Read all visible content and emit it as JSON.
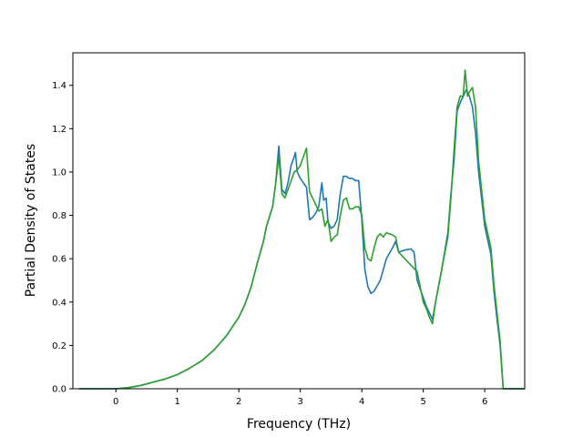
{
  "chart_data": {
    "type": "line",
    "title": "",
    "xlabel": "Frequency (THz)",
    "ylabel": "Partial Density of States",
    "xlim": [
      -0.7,
      6.65
    ],
    "ylim": [
      0.0,
      1.55
    ],
    "xticks": [
      "0",
      "1",
      "2",
      "3",
      "4",
      "5",
      "6"
    ],
    "yticks": [
      "0.0",
      "0.2",
      "0.4",
      "0.6",
      "0.8",
      "1.0",
      "1.2",
      "1.4"
    ],
    "grid": false,
    "legend": "none",
    "series": [
      {
        "color": "#1f77b4",
        "points": [
          [
            -0.6,
            0.0
          ],
          [
            0.0,
            0.0
          ],
          [
            0.2,
            0.005
          ],
          [
            0.4,
            0.015
          ],
          [
            0.6,
            0.03
          ],
          [
            0.8,
            0.045
          ],
          [
            1.0,
            0.065
          ],
          [
            1.2,
            0.095
          ],
          [
            1.4,
            0.13
          ],
          [
            1.6,
            0.18
          ],
          [
            1.8,
            0.245
          ],
          [
            2.0,
            0.33
          ],
          [
            2.1,
            0.39
          ],
          [
            2.2,
            0.47
          ],
          [
            2.3,
            0.58
          ],
          [
            2.4,
            0.68
          ],
          [
            2.45,
            0.75
          ],
          [
            2.55,
            0.84
          ],
          [
            2.6,
            0.95
          ],
          [
            2.65,
            1.12
          ],
          [
            2.7,
            0.92
          ],
          [
            2.75,
            0.9
          ],
          [
            2.8,
            0.95
          ],
          [
            2.85,
            1.03
          ],
          [
            2.9,
            1.07
          ],
          [
            2.92,
            1.09
          ],
          [
            2.95,
            1.0
          ],
          [
            3.0,
            0.97
          ],
          [
            3.1,
            0.93
          ],
          [
            3.15,
            0.78
          ],
          [
            3.2,
            0.79
          ],
          [
            3.25,
            0.81
          ],
          [
            3.3,
            0.84
          ],
          [
            3.35,
            0.95
          ],
          [
            3.38,
            0.87
          ],
          [
            3.42,
            0.88
          ],
          [
            3.45,
            0.77
          ],
          [
            3.5,
            0.74
          ],
          [
            3.55,
            0.75
          ],
          [
            3.6,
            0.78
          ],
          [
            3.65,
            0.9
          ],
          [
            3.7,
            0.98
          ],
          [
            3.75,
            0.98
          ],
          [
            3.8,
            0.97
          ],
          [
            3.85,
            0.97
          ],
          [
            3.9,
            0.96
          ],
          [
            3.95,
            0.96
          ],
          [
            4.0,
            0.78
          ],
          [
            4.05,
            0.55
          ],
          [
            4.1,
            0.47
          ],
          [
            4.15,
            0.44
          ],
          [
            4.2,
            0.45
          ],
          [
            4.3,
            0.5
          ],
          [
            4.4,
            0.6
          ],
          [
            4.5,
            0.65
          ],
          [
            4.55,
            0.68
          ],
          [
            4.6,
            0.63
          ],
          [
            4.7,
            0.64
          ],
          [
            4.8,
            0.645
          ],
          [
            4.85,
            0.63
          ],
          [
            4.9,
            0.5
          ],
          [
            5.0,
            0.42
          ],
          [
            5.05,
            0.38
          ],
          [
            5.1,
            0.35
          ],
          [
            5.15,
            0.32
          ],
          [
            5.2,
            0.4
          ],
          [
            5.3,
            0.55
          ],
          [
            5.4,
            0.72
          ],
          [
            5.45,
            0.9
          ],
          [
            5.5,
            1.05
          ],
          [
            5.55,
            1.28
          ],
          [
            5.6,
            1.32
          ],
          [
            5.65,
            1.35
          ],
          [
            5.7,
            1.38
          ],
          [
            5.75,
            1.35
          ],
          [
            5.8,
            1.3
          ],
          [
            5.85,
            1.18
          ],
          [
            5.9,
            1.0
          ],
          [
            6.0,
            0.75
          ],
          [
            6.1,
            0.62
          ],
          [
            6.15,
            0.45
          ],
          [
            6.2,
            0.32
          ],
          [
            6.25,
            0.2
          ],
          [
            6.3,
            0.0
          ],
          [
            6.35,
            0.0
          ],
          [
            7.0,
            0.0
          ]
        ]
      },
      {
        "color": "#2ca02c",
        "points": [
          [
            -0.6,
            0.0
          ],
          [
            0.0,
            0.0
          ],
          [
            0.2,
            0.005
          ],
          [
            0.4,
            0.015
          ],
          [
            0.6,
            0.03
          ],
          [
            0.8,
            0.045
          ],
          [
            1.0,
            0.065
          ],
          [
            1.2,
            0.095
          ],
          [
            1.4,
            0.13
          ],
          [
            1.6,
            0.18
          ],
          [
            1.8,
            0.245
          ],
          [
            2.0,
            0.33
          ],
          [
            2.1,
            0.39
          ],
          [
            2.2,
            0.47
          ],
          [
            2.3,
            0.58
          ],
          [
            2.4,
            0.68
          ],
          [
            2.45,
            0.75
          ],
          [
            2.55,
            0.84
          ],
          [
            2.6,
            0.95
          ],
          [
            2.65,
            1.07
          ],
          [
            2.7,
            0.9
          ],
          [
            2.75,
            0.88
          ],
          [
            2.8,
            0.92
          ],
          [
            2.85,
            0.96
          ],
          [
            2.9,
            1.0
          ],
          [
            2.95,
            1.01
          ],
          [
            3.0,
            1.03
          ],
          [
            3.05,
            1.07
          ],
          [
            3.1,
            1.11
          ],
          [
            3.15,
            0.91
          ],
          [
            3.2,
            0.88
          ],
          [
            3.25,
            0.85
          ],
          [
            3.3,
            0.82
          ],
          [
            3.35,
            0.83
          ],
          [
            3.4,
            0.75
          ],
          [
            3.45,
            0.78
          ],
          [
            3.5,
            0.68
          ],
          [
            3.55,
            0.7
          ],
          [
            3.6,
            0.71
          ],
          [
            3.65,
            0.8
          ],
          [
            3.7,
            0.87
          ],
          [
            3.75,
            0.88
          ],
          [
            3.8,
            0.83
          ],
          [
            3.85,
            0.83
          ],
          [
            3.9,
            0.84
          ],
          [
            3.95,
            0.84
          ],
          [
            4.0,
            0.8
          ],
          [
            4.05,
            0.65
          ],
          [
            4.1,
            0.6
          ],
          [
            4.15,
            0.59
          ],
          [
            4.2,
            0.65
          ],
          [
            4.25,
            0.7
          ],
          [
            4.3,
            0.715
          ],
          [
            4.35,
            0.7
          ],
          [
            4.4,
            0.72
          ],
          [
            4.5,
            0.71
          ],
          [
            4.55,
            0.7
          ],
          [
            4.6,
            0.63
          ],
          [
            4.7,
            0.6
          ],
          [
            4.8,
            0.57
          ],
          [
            4.9,
            0.54
          ],
          [
            5.0,
            0.4
          ],
          [
            5.05,
            0.37
          ],
          [
            5.1,
            0.33
          ],
          [
            5.15,
            0.3
          ],
          [
            5.2,
            0.4
          ],
          [
            5.3,
            0.55
          ],
          [
            5.4,
            0.7
          ],
          [
            5.45,
            0.88
          ],
          [
            5.5,
            1.1
          ],
          [
            5.55,
            1.3
          ],
          [
            5.6,
            1.35
          ],
          [
            5.65,
            1.35
          ],
          [
            5.68,
            1.47
          ],
          [
            5.72,
            1.35
          ],
          [
            5.75,
            1.37
          ],
          [
            5.8,
            1.39
          ],
          [
            5.85,
            1.3
          ],
          [
            5.9,
            1.05
          ],
          [
            6.0,
            0.78
          ],
          [
            6.1,
            0.65
          ],
          [
            6.15,
            0.48
          ],
          [
            6.2,
            0.35
          ],
          [
            6.25,
            0.22
          ],
          [
            6.3,
            0.0
          ],
          [
            6.35,
            0.0
          ],
          [
            7.0,
            0.0
          ]
        ]
      }
    ]
  }
}
